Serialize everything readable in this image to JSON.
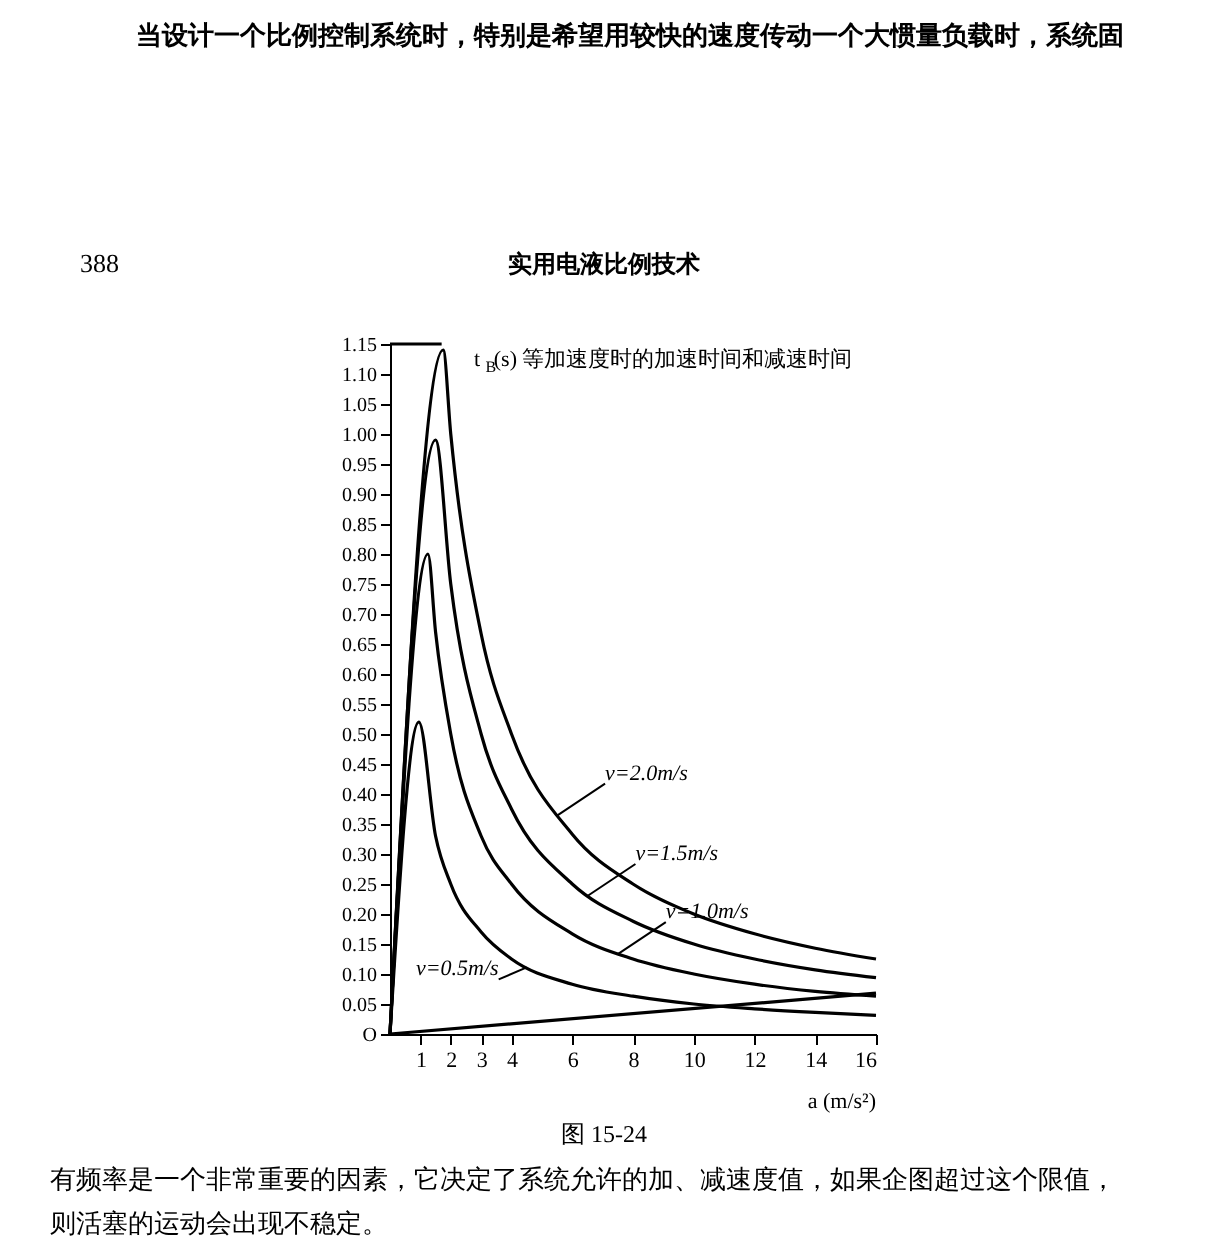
{
  "chart_data": {
    "type": "line",
    "ylabel": "t$_{B}$(s) 等加速度时的加速时间和减速时间",
    "xlabel": "a (m/s²)",
    "xlim": [
      0,
      16
    ],
    "ylim": [
      0,
      1.15
    ],
    "xticks": [
      1,
      2,
      3,
      4,
      6,
      8,
      10,
      12,
      14,
      16
    ],
    "yticks": [
      {
        "value": 0,
        "label": "O"
      },
      {
        "value": 0.05,
        "label": "0.05"
      },
      {
        "value": 0.1,
        "label": "0.10"
      },
      0.15,
      {
        "value": 0.2,
        "label": "0.20"
      },
      0.25,
      {
        "value": 0.3,
        "label": "0.30"
      },
      0.35,
      {
        "value": 0.4,
        "label": "0.40"
      },
      0.45,
      {
        "value": 0.5,
        "label": "0.50"
      },
      0.55,
      {
        "value": 0.6,
        "label": "0.60"
      },
      0.65,
      {
        "value": 0.7,
        "label": "0.70"
      },
      0.75,
      {
        "value": 0.8,
        "label": "0.80"
      },
      0.85,
      {
        "value": 0.9,
        "label": "0.90"
      },
      0.95,
      {
        "value": 1.0,
        "label": "1.00"
      },
      1.05,
      {
        "value": 1.1,
        "label": "1.10"
      },
      1.15
    ],
    "grid": false,
    "series": [
      {
        "color": "#000000",
        "x": [
          0,
          0.95,
          1.5,
          2,
          3,
          4,
          6,
          8,
          10,
          12,
          14,
          16
        ],
        "values": [
          0,
          0.52,
          0.33,
          0.25,
          0.17,
          0.125,
          0.083,
          0.063,
          0.05,
          0.042,
          0.036,
          0.031
        ]
      },
      {
        "color": "#000000",
        "x": [
          0,
          1.25,
          1.5,
          2,
          3,
          4,
          6,
          8,
          10,
          12,
          14,
          16
        ],
        "values": [
          0,
          0.8,
          0.67,
          0.5,
          0.33,
          0.25,
          0.167,
          0.125,
          0.1,
          0.083,
          0.071,
          0.063
        ]
      },
      {
        "color": "#000000",
        "x": [
          0,
          1.5,
          2,
          3,
          4,
          6,
          8,
          10,
          12,
          14,
          16
        ],
        "values": [
          0,
          0.99,
          0.75,
          0.5,
          0.375,
          0.25,
          0.188,
          0.15,
          0.125,
          0.107,
          0.094
        ]
      },
      {
        "color": "#000000",
        "x": [
          0,
          1.75,
          2,
          3,
          4,
          6,
          8,
          10,
          12,
          14,
          16
        ],
        "values": [
          0,
          1.14,
          1.0,
          0.667,
          0.5,
          0.333,
          0.25,
          0.2,
          0.167,
          0.143,
          0.125
        ]
      },
      {
        "color": "#000000",
        "x": [
          0,
          1.7
        ],
        "values": [
          1.15,
          1.15
        ]
      },
      {
        "color": "#000000",
        "x": [
          0,
          16
        ],
        "values": [
          0,
          0.068
        ]
      }
    ],
    "annotations": [
      {
        "text": "v=0.5m/s",
        "x": 4.5,
        "y": 0.111
      },
      {
        "text": "v=1.0m/s",
        "x": 7.5,
        "y": 0.133
      },
      {
        "text": "v=1.5m/s",
        "x": 6.5,
        "y": 0.23
      },
      {
        "text": "v=2.0m/s",
        "x": 5.5,
        "y": 0.364
      },
      "当设计一个比例控制系统时，特别是希望用较快的速度传动一个大惯量负载时，系统固",
      "388",
      "实用电液比例技术",
      "图 15-24",
      "有频率是一个非常重要的因素，它决定了系统允许的加、减速度值，如果企图超过这个限值，",
      "则活塞的运动会出现不稳定。"
    ]
  }
}
